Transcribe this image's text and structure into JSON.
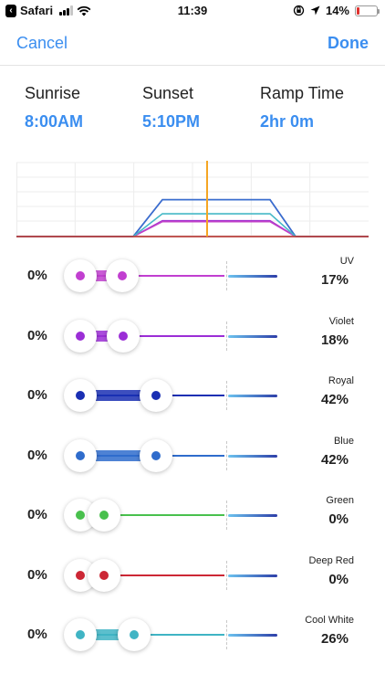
{
  "status_bar": {
    "back_app": "Safari",
    "time": "11:39",
    "battery": "14%",
    "battery_level": 0.14
  },
  "nav": {
    "cancel": "Cancel",
    "done": "Done"
  },
  "schedule": {
    "sunrise_label": "Sunrise",
    "sunrise_value": "8:00AM",
    "sunset_label": "Sunset",
    "sunset_value": "5:10PM",
    "ramp_label": "Ramp Time",
    "ramp_value": "2hr 0m"
  },
  "colors": {
    "accent": "#3b8ef0",
    "now_marker": "#f5a623"
  },
  "chart_data": {
    "type": "area",
    "grid": true,
    "current_time_marker": "11:39",
    "sunrise": "8:00AM",
    "sunset": "5:10PM",
    "ramp": "2hr 0m",
    "series": [
      {
        "color": "#1f2fa8",
        "peak": 42
      },
      {
        "color": "#3a6fd0",
        "peak": 42
      },
      {
        "color": "#a030d0",
        "peak": 18
      },
      {
        "color": "#c040c8",
        "peak": 17
      },
      {
        "color": "#45b8c6",
        "peak": 26
      },
      {
        "color": "#4cc04c",
        "peak": 0
      },
      {
        "color": "#cc2b3a",
        "peak": 0
      }
    ]
  },
  "channels": [
    {
      "name": "UV",
      "min": "0%",
      "value": "17%",
      "level": 17,
      "color": "#c13fd0"
    },
    {
      "name": "Violet",
      "min": "0%",
      "value": "18%",
      "level": 18,
      "color": "#9b2ed6"
    },
    {
      "name": "Royal",
      "min": "0%",
      "value": "42%",
      "level": 42,
      "color": "#1a2fb3"
    },
    {
      "name": "Blue",
      "min": "0%",
      "value": "42%",
      "level": 42,
      "color": "#2f6ccc"
    },
    {
      "name": "Green",
      "min": "0%",
      "value": "0%",
      "level": 0,
      "color": "#49c04d"
    },
    {
      "name": "Deep Red",
      "min": "0%",
      "value": "0%",
      "level": 0,
      "color": "#cc2735"
    },
    {
      "name": "Cool White",
      "min": "0%",
      "value": "26%",
      "level": 26,
      "color": "#40b4c4"
    }
  ]
}
